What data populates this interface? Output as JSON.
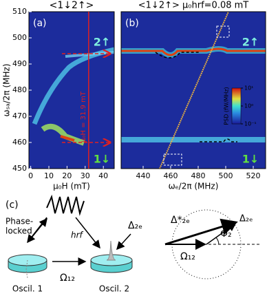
{
  "panel_a": {
    "label": "(a)",
    "title": "<1↓2↑>",
    "x_label": "μ₀H (mT)",
    "y_label": "ωₛₐ/2π (MHz)",
    "xlim": [
      -1,
      46
    ],
    "xticks": [
      0,
      10,
      20,
      30,
      40
    ],
    "ylim": [
      450,
      510
    ],
    "yticks": [
      450,
      460,
      470,
      480,
      490,
      500,
      510
    ],
    "marker_x": 31.9,
    "annotation": "μ₀H = 31.9 mT",
    "mode_upper": "2↑",
    "mode_lower": "1↓"
  },
  "panel_b": {
    "label": "(b)",
    "title": "<1↓2↑> μ₀hrf=0.08 mT",
    "x_label": "ωₑ/2π (MHz)",
    "xlim": [
      424,
      529
    ],
    "xticks": [
      440,
      460,
      480,
      500,
      520
    ],
    "ylim": [
      450,
      510
    ],
    "mode_upper": "2↑",
    "mode_lower": "1↓",
    "colorbar": {
      "label": "PSD (fW/MHz)",
      "lim": [
        -1,
        1
      ],
      "ticks": [
        {
          "value": -1,
          "label": "10⁻¹"
        },
        {
          "value": 0,
          "label": "10⁰"
        },
        {
          "value": 1,
          "label": "10¹"
        }
      ]
    }
  },
  "panel_c": {
    "label": "(c)",
    "phase_locked": [
      "Phase-",
      "locked"
    ],
    "h_rf": "hrf",
    "delta_2e": "Δ₂ₑ",
    "oscil_1": "Oscil. 1",
    "oscil_2": "Oscil. 2",
    "omega_12": "Ω₁₂",
    "vector_delta_star": "Δ*₂ₑ",
    "vector_delta": "Δ₂ₑ",
    "vector_phi": "Φ₂",
    "vector_omega": "Ω₁₂"
  }
}
